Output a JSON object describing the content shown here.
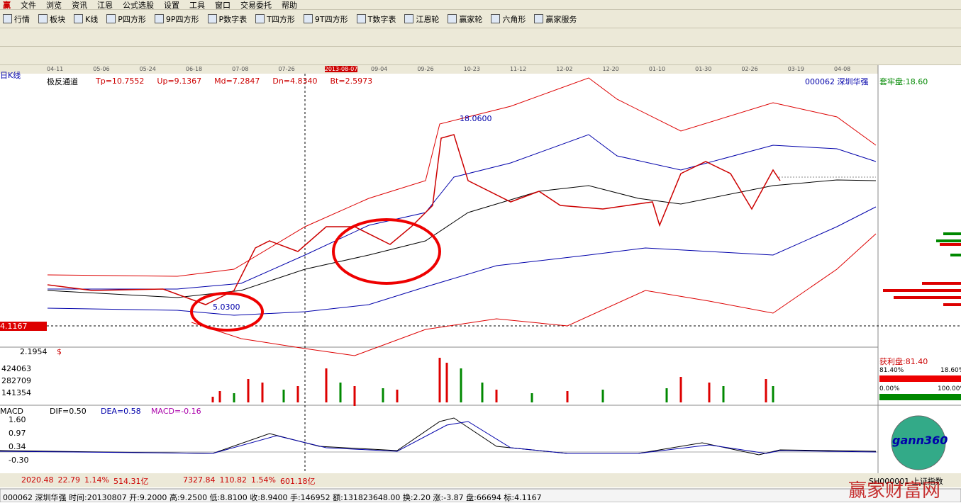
{
  "window": {
    "logo": "赢",
    "menu": [
      "文件",
      "浏览",
      "资讯",
      "江恩",
      "公式选股",
      "设置",
      "工具",
      "窗口",
      "交易委托",
      "帮助"
    ]
  },
  "toolbar": [
    "行情",
    "板块",
    "K线",
    "P四方形",
    "9P四方形",
    "P数字表",
    "T四方形",
    "9T四方形",
    "T数字表",
    "江恩轮",
    "赢家轮",
    "六角形",
    "赢家服务"
  ],
  "chart": {
    "period": "日K线",
    "indicator": "极反通道",
    "params": [
      "Tp=10.7552",
      "Up=9.1367",
      "Md=7.2847",
      "Dn=4.8340",
      "Bt=2.5973"
    ],
    "stock": "000062 深圳华强",
    "trapped": "套牢盘:18.60",
    "dates": [
      "04-11",
      "05-06",
      "05-24",
      "06-18",
      "07-08",
      "07-26",
      "2013-08-07",
      "09-04",
      "09-26",
      "10-23",
      "11-12",
      "12-02",
      "12-20",
      "01-10",
      "01-30",
      "02-26",
      "03-19",
      "04-08"
    ],
    "high_label": "18.0600",
    "low_label": "5.0300",
    "price_marker": "4.1167",
    "bottom_value": "2.1954",
    "bottom_sign": "$"
  },
  "volume": {
    "ticks": [
      "424063",
      "282709",
      "141354"
    ]
  },
  "profit": {
    "title": "获利盘:81.40",
    "left_top": "81.40%",
    "right_top": "18.60%",
    "left_bottom": "0.00%",
    "right_bottom": "100.00%"
  },
  "macd": {
    "name": "MACD",
    "dif": "DIF=0.50",
    "dea": "DEA=0.58",
    "macd": "MACD=-0.16",
    "ticks": [
      "1.60",
      "0.97",
      "0.34",
      "-0.30"
    ]
  },
  "status": {
    "sh": [
      "2020.48",
      "22.79",
      "1.14%",
      "514.31亿"
    ],
    "sz": [
      "7327.84",
      "110.82",
      "1.54%",
      "601.18亿"
    ],
    "index": "SH000001 上证指数"
  },
  "info": "000062 深圳华强 时间:20130807 开:9.2000 高:9.2500 低:8.8100 收:8.9400 手:146952 额:131823648.00 换:2.20 涨:-3.87 盘:66694 标:4.1167",
  "brand": "gann360",
  "watermark": "赢家财富网"
}
